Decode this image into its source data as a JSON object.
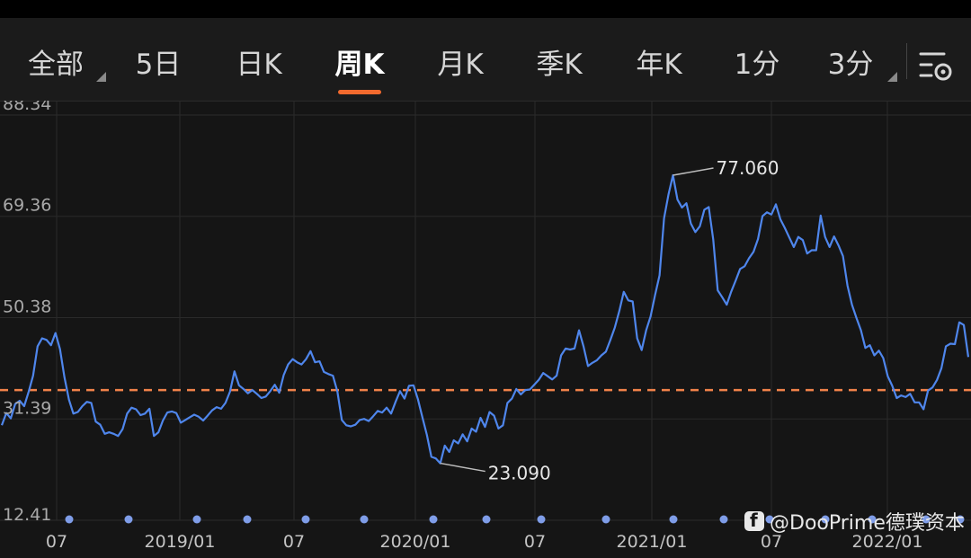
{
  "tabs": [
    {
      "label": "全部",
      "active": false,
      "dropdown": true
    },
    {
      "label": "5日",
      "active": false,
      "dropdown": false
    },
    {
      "label": "日K",
      "active": false,
      "dropdown": false
    },
    {
      "label": "周K",
      "active": true,
      "dropdown": false
    },
    {
      "label": "月K",
      "active": false,
      "dropdown": false
    },
    {
      "label": "季K",
      "active": false,
      "dropdown": false
    },
    {
      "label": "年K",
      "active": false,
      "dropdown": false
    },
    {
      "label": "1分",
      "active": false,
      "dropdown": false
    },
    {
      "label": "3分",
      "active": false,
      "dropdown": true
    }
  ],
  "settings": {
    "icon": "chart-settings-icon"
  },
  "watermark": {
    "text": "@DooPrime德璞资本",
    "icon": "facebook-icon"
  },
  "colors": {
    "line": "#4f86ec",
    "reference_line": "#f0824a",
    "active_underline": "#f26a2e",
    "marker_dot": "#7f9de8",
    "grid": "#2a2a2a"
  },
  "chart_data": {
    "type": "line",
    "y_ticks": [
      "88.34",
      "69.36",
      "50.38",
      "31.39",
      "12.41"
    ],
    "y_tick_values": [
      88.34,
      69.36,
      50.38,
      31.39,
      12.41
    ],
    "ylim": [
      12.41,
      88.34
    ],
    "x_ticks": [
      "07",
      "2019/01",
      "07",
      "2020/01",
      "07",
      "2021/01",
      "07",
      "2022/01"
    ],
    "x_range": [
      "2018/06",
      "2022/04"
    ],
    "grid": true,
    "reference_line": {
      "value": 36.8,
      "style": "dashed"
    },
    "annotations": [
      {
        "text": "77.060",
        "value": 77.06,
        "type": "high"
      },
      {
        "text": "23.090",
        "value": 23.09,
        "type": "low"
      }
    ],
    "event_markers": 17,
    "series": [
      {
        "values": [
          30.2,
          32.5,
          31.5,
          34.2,
          34.8,
          33.8,
          36.5,
          39.5,
          45.0,
          46.5,
          46.2,
          45.2,
          47.5,
          44.5,
          39.2,
          35.0,
          32.4,
          32.7,
          33.8,
          34.6,
          34.4,
          30.9,
          30.3,
          28.6,
          28.9,
          28.6,
          28.2,
          29.5,
          32.4,
          33.5,
          33.2,
          32.1,
          32.4,
          33.3,
          28.2,
          28.9,
          31.1,
          32.6,
          32.8,
          32.5,
          30.7,
          31.2,
          31.7,
          32.2,
          31.8,
          31.1,
          32.0,
          33.0,
          33.6,
          33.3,
          34.4,
          36.5,
          40.3,
          37.7,
          37.0,
          36.2,
          36.8,
          36.1,
          35.3,
          35.6,
          36.6,
          37.8,
          36.3,
          39.6,
          41.6,
          42.6,
          42.0,
          41.6,
          42.6,
          44.1,
          42.0,
          42.2,
          40.2,
          39.8,
          39.5,
          36.5,
          31.2,
          30.2,
          30.0,
          30.3,
          31.2,
          31.4,
          31.0,
          31.9,
          32.9,
          32.6,
          33.5,
          32.4,
          34.6,
          36.6,
          35.2,
          37.6,
          37.7,
          35.1,
          31.7,
          28.4,
          24.3,
          24.0,
          23.09,
          26.4,
          25.2,
          27.4,
          26.8,
          28.5,
          27.2,
          29.6,
          29.0,
          31.6,
          29.9,
          32.7,
          32.0,
          29.6,
          30.2,
          34.4,
          35.2,
          37.0,
          36.0,
          36.8,
          36.9,
          37.8,
          38.7,
          40.0,
          39.4,
          38.8,
          39.5,
          43.3,
          44.6,
          44.4,
          44.6,
          48.0,
          45.0,
          41.3,
          41.9,
          42.4,
          43.3,
          44.0,
          46.2,
          48.5,
          51.6,
          55.2,
          53.6,
          53.4,
          46.5,
          44.3,
          48.0,
          50.6,
          54.6,
          58.3,
          69.0,
          73.5,
          77.06,
          72.5,
          71.0,
          71.8,
          68.0,
          66.4,
          67.5,
          70.6,
          71.1,
          65.0,
          55.5,
          54.2,
          52.8,
          55.2,
          57.3,
          59.5,
          60.0,
          61.5,
          62.7,
          65.1,
          69.4,
          70.1,
          69.7,
          71.6,
          68.8,
          67.2,
          65.4,
          63.6,
          65.5,
          64.9,
          62.4,
          63.0,
          63.0,
          69.5,
          65.5,
          63.6,
          65.6,
          63.9,
          61.9,
          56.4,
          52.8,
          50.3,
          48.0,
          44.7,
          45.2,
          43.3,
          44.2,
          42.8,
          39.4,
          37.6,
          35.3,
          35.8,
          35.5,
          36.1,
          34.5,
          34.5,
          33.2,
          36.7,
          37.3,
          38.7,
          40.9,
          45.0,
          45.5,
          45.4,
          49.5,
          49.0,
          43.0
        ]
      }
    ]
  }
}
